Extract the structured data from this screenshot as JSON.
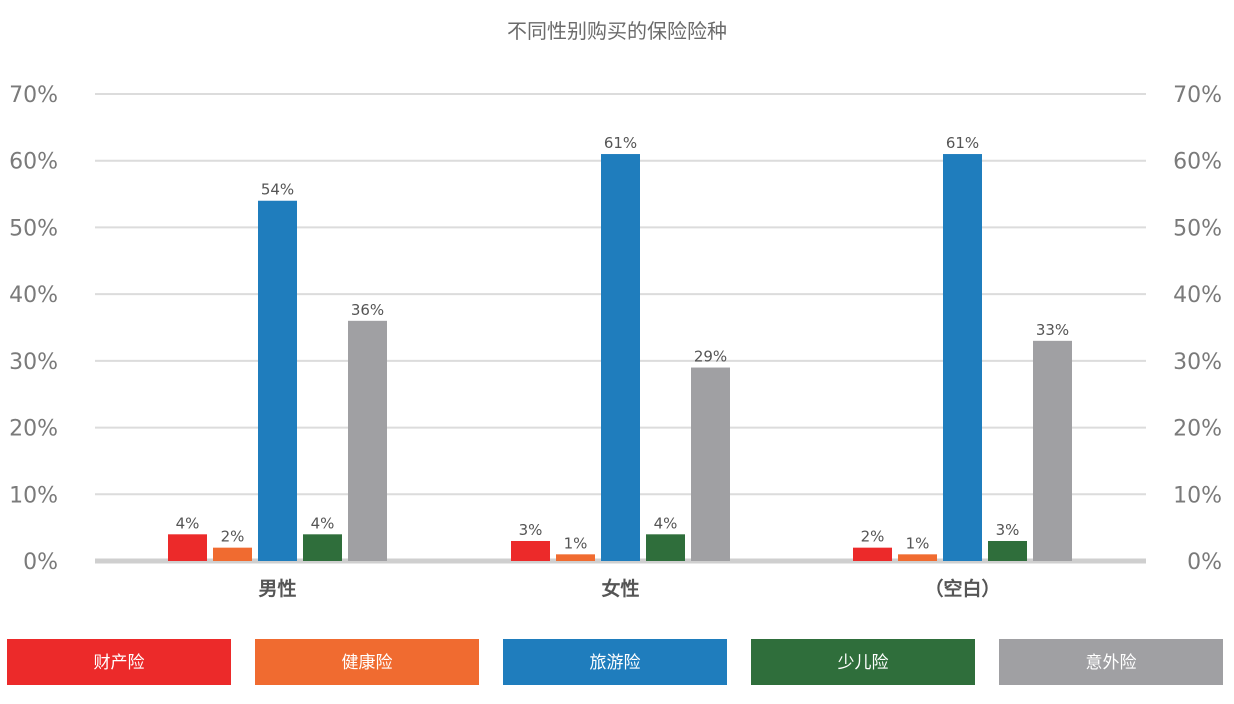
{
  "chart_data": {
    "type": "bar",
    "title": "不同性别购买的保险险种",
    "categories": [
      "男性",
      "女性",
      "（空白）"
    ],
    "series": [
      {
        "name": "财产险",
        "color": "#ec2a2a",
        "values": [
          4,
          3,
          2
        ]
      },
      {
        "name": "健康险",
        "color": "#f06b30",
        "values": [
          2,
          1,
          1
        ]
      },
      {
        "name": "旅游险",
        "color": "#1f7dbd",
        "values": [
          54,
          61,
          61
        ]
      },
      {
        "name": "少儿险",
        "color": "#2f6e3b",
        "values": [
          4,
          4,
          3
        ]
      },
      {
        "name": "意外险",
        "color": "#a0a0a3",
        "values": [
          36,
          29,
          33
        ]
      }
    ],
    "data_labels": [
      [
        "4%",
        "2%",
        "54%",
        "4%",
        "36%"
      ],
      [
        "3%",
        "1%",
        "61%",
        "4%",
        "29%"
      ],
      [
        "2%",
        "1%",
        "61%",
        "3%",
        "33%"
      ]
    ],
    "ylim": [
      0,
      70
    ],
    "yticks": [
      "0%",
      "10%",
      "20%",
      "30%",
      "40%",
      "50%",
      "60%",
      "70%"
    ],
    "y_axis_right": true,
    "grid": true,
    "legend_position": "bottom"
  }
}
